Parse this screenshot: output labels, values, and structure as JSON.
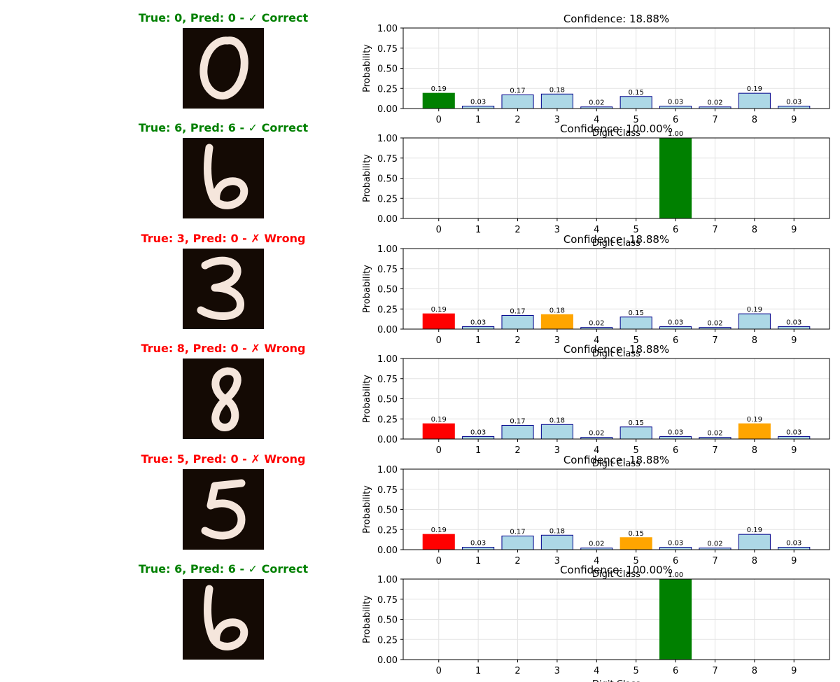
{
  "figure": {
    "colors": {
      "default_bar": "#add8e6",
      "bar_edge": "#00008b",
      "correct": "#008000",
      "wrong_pred": "#ff0000",
      "true_label": "#ffa500",
      "digit_bg": "#140a04",
      "digit_stroke": "#f5e6dc"
    }
  },
  "chart_data": [
    {
      "type": "bar",
      "caption": "True: 0, Pred: 0 - ✓ Correct",
      "true_label": 0,
      "pred_label": 0,
      "correct": true,
      "title": "Confidence: 18.88%",
      "xlabel": "Digit Class",
      "ylabel": "Probability",
      "categories": [
        "0",
        "1",
        "2",
        "3",
        "4",
        "5",
        "6",
        "7",
        "8",
        "9"
      ],
      "values": [
        0.19,
        0.03,
        0.17,
        0.18,
        0.02,
        0.15,
        0.03,
        0.02,
        0.19,
        0.03
      ],
      "value_labels": [
        "0.19",
        "0.03",
        "0.17",
        "0.18",
        "0.02",
        "0.15",
        "0.03",
        "0.02",
        "0.19",
        "0.03"
      ],
      "yticks": [
        "0.00",
        "0.25",
        "0.50",
        "0.75",
        "1.00"
      ],
      "ylim": [
        0,
        1
      ],
      "grid": true
    },
    {
      "type": "bar",
      "caption": "True: 6, Pred: 6 - ✓ Correct",
      "true_label": 6,
      "pred_label": 6,
      "correct": true,
      "title": "Confidence: 100.00%",
      "xlabel": "Digit Class",
      "ylabel": "Probability",
      "categories": [
        "0",
        "1",
        "2",
        "3",
        "4",
        "5",
        "6",
        "7",
        "8",
        "9"
      ],
      "values": [
        0,
        0,
        0,
        0,
        0,
        0,
        1.0,
        0,
        0,
        0
      ],
      "value_labels": [
        "",
        "",
        "",
        "",
        "",
        "",
        "1.00",
        "",
        "",
        ""
      ],
      "yticks": [
        "0.00",
        "0.25",
        "0.50",
        "0.75",
        "1.00"
      ],
      "ylim": [
        0,
        1
      ],
      "grid": true
    },
    {
      "type": "bar",
      "caption": "True: 3, Pred: 0 - ✗ Wrong",
      "true_label": 3,
      "pred_label": 0,
      "correct": false,
      "title": "Confidence: 18.88%",
      "xlabel": "Digit Class",
      "ylabel": "Probability",
      "categories": [
        "0",
        "1",
        "2",
        "3",
        "4",
        "5",
        "6",
        "7",
        "8",
        "9"
      ],
      "values": [
        0.19,
        0.03,
        0.17,
        0.18,
        0.02,
        0.15,
        0.03,
        0.02,
        0.19,
        0.03
      ],
      "value_labels": [
        "0.19",
        "0.03",
        "0.17",
        "0.18",
        "0.02",
        "0.15",
        "0.03",
        "0.02",
        "0.19",
        "0.03"
      ],
      "yticks": [
        "0.00",
        "0.25",
        "0.50",
        "0.75",
        "1.00"
      ],
      "ylim": [
        0,
        1
      ],
      "grid": true
    },
    {
      "type": "bar",
      "caption": "True: 8, Pred: 0 - ✗ Wrong",
      "true_label": 8,
      "pred_label": 0,
      "correct": false,
      "title": "Confidence: 18.88%",
      "xlabel": "Digit Class",
      "ylabel": "Probability",
      "categories": [
        "0",
        "1",
        "2",
        "3",
        "4",
        "5",
        "6",
        "7",
        "8",
        "9"
      ],
      "values": [
        0.19,
        0.03,
        0.17,
        0.18,
        0.02,
        0.15,
        0.03,
        0.02,
        0.19,
        0.03
      ],
      "value_labels": [
        "0.19",
        "0.03",
        "0.17",
        "0.18",
        "0.02",
        "0.15",
        "0.03",
        "0.02",
        "0.19",
        "0.03"
      ],
      "yticks": [
        "0.00",
        "0.25",
        "0.50",
        "0.75",
        "1.00"
      ],
      "ylim": [
        0,
        1
      ],
      "grid": true
    },
    {
      "type": "bar",
      "caption": "True: 5, Pred: 0 - ✗ Wrong",
      "true_label": 5,
      "pred_label": 0,
      "correct": false,
      "title": "Confidence: 18.88%",
      "xlabel": "Digit Class",
      "ylabel": "Probability",
      "categories": [
        "0",
        "1",
        "2",
        "3",
        "4",
        "5",
        "6",
        "7",
        "8",
        "9"
      ],
      "values": [
        0.19,
        0.03,
        0.17,
        0.18,
        0.02,
        0.15,
        0.03,
        0.02,
        0.19,
        0.03
      ],
      "value_labels": [
        "0.19",
        "0.03",
        "0.17",
        "0.18",
        "0.02",
        "0.15",
        "0.03",
        "0.02",
        "0.19",
        "0.03"
      ],
      "yticks": [
        "0.00",
        "0.25",
        "0.50",
        "0.75",
        "1.00"
      ],
      "ylim": [
        0,
        1
      ],
      "grid": true
    },
    {
      "type": "bar",
      "caption": "True: 6, Pred: 6 - ✓ Correct",
      "true_label": 6,
      "pred_label": 6,
      "correct": true,
      "title": "Confidence: 100.00%",
      "xlabel": "Digit Class",
      "ylabel": "Probability",
      "categories": [
        "0",
        "1",
        "2",
        "3",
        "4",
        "5",
        "6",
        "7",
        "8",
        "9"
      ],
      "values": [
        0,
        0,
        0,
        0,
        0,
        0,
        1.0,
        0,
        0,
        0
      ],
      "value_labels": [
        "",
        "",
        "",
        "",
        "",
        "",
        "1.00",
        "",
        "",
        ""
      ],
      "yticks": [
        "0.00",
        "0.25",
        "0.50",
        "0.75",
        "1.00"
      ],
      "ylim": [
        0,
        1
      ],
      "grid": true
    }
  ]
}
